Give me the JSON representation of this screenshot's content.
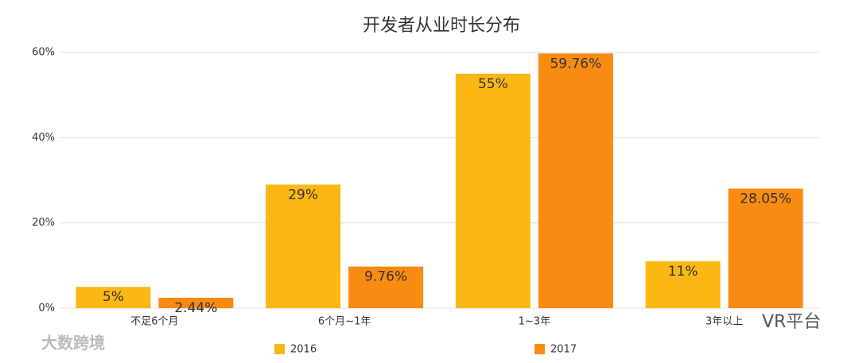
{
  "chart_data": {
    "type": "bar",
    "title": "开发者从业时长分布",
    "categories": [
      "不足6个月",
      "6个月~1年",
      "1~3年",
      "3年以上"
    ],
    "series": [
      {
        "name": "2016",
        "color": "#fbb814",
        "values": [
          5,
          29,
          55,
          11
        ],
        "value_labels": [
          "5%",
          "29%",
          "55%",
          "11%"
        ]
      },
      {
        "name": "2017",
        "color": "#f98b12",
        "values": [
          2.44,
          9.76,
          59.76,
          28.05
        ],
        "value_labels": [
          "2.44%",
          "9.76%",
          "59.76%",
          "28.05%"
        ]
      }
    ],
    "ylim": [
      0,
      60
    ],
    "yticks": [
      {
        "value": 0,
        "label": "0%"
      },
      {
        "value": 20,
        "label": "20%"
      },
      {
        "value": 40,
        "label": "40%"
      },
      {
        "value": 60,
        "label": "60%"
      }
    ],
    "grid": true,
    "legend": "bottom",
    "watermarks": [
      "大数跨境",
      "VR平台"
    ]
  }
}
